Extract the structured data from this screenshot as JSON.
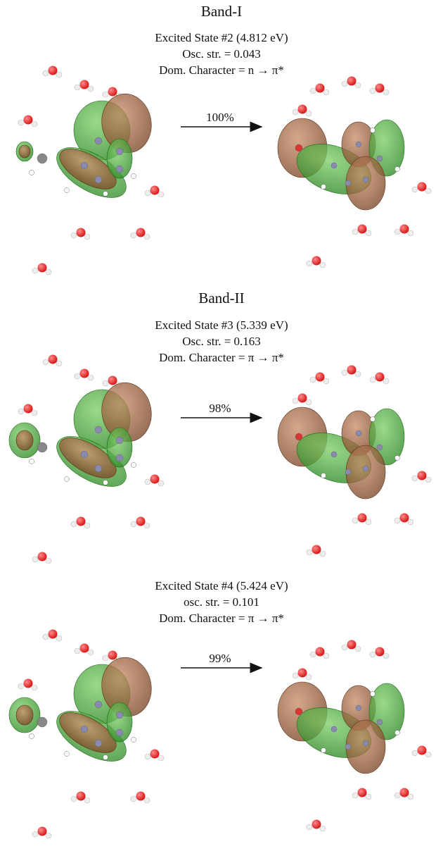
{
  "panels": [
    {
      "band": "Band-I",
      "state": "Excited State #2 (4.812 eV)",
      "oscillator": "Osc. str. = 0.043",
      "character": "Dom. Character = n → π*",
      "contribution": "100%"
    },
    {
      "band": "Band-II",
      "state": "Excited State #3 (5.339 eV)",
      "oscillator": "Osc. str. = 0.163",
      "character": "Dom. Character = π → π*",
      "contribution": "98%"
    },
    {
      "state": "Excited State #4 (5.424 eV)",
      "oscillator": "osc. str. = 0.101",
      "character": "Dom. Character = π → π*",
      "contribution": "99%"
    }
  ]
}
